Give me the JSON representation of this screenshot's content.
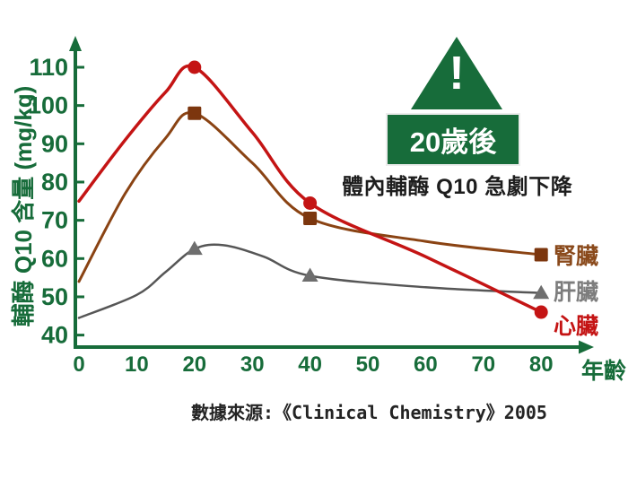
{
  "colors": {
    "axis_green": "#176c3a",
    "warning_green": "#176c3a",
    "heart_red": "#c41414",
    "kidney_brown": "#8a4313",
    "liver_gray": "#565656",
    "text_black": "#1d1d1d",
    "background": "#ffffff"
  },
  "chart_data": {
    "type": "line",
    "title": "",
    "xlabel": "年齡",
    "ylabel": "輔酶 Q10 含量 (mg/kg)",
    "x_ticks": [
      0,
      10,
      20,
      30,
      40,
      50,
      60,
      70,
      80
    ],
    "y_ticks": [
      40,
      50,
      60,
      70,
      80,
      90,
      100,
      110
    ],
    "xlim": [
      0,
      85
    ],
    "ylim": [
      37,
      116
    ],
    "grid": false,
    "legend_position": "right of line ends",
    "series": [
      {
        "name": "腎臟",
        "organ": "kidney",
        "color": "#8a4313",
        "marker_color": "#7c360e",
        "label_color": "#8a4a1c",
        "marker": "square",
        "width": 3,
        "z": 2,
        "points": [
          [
            0,
            54
          ],
          [
            8,
            77
          ],
          [
            15,
            91.5
          ],
          [
            20,
            98
          ],
          [
            30,
            85
          ],
          [
            40,
            70.5
          ],
          [
            60,
            64.5
          ],
          [
            80,
            61
          ]
        ],
        "marker_points": [
          [
            20,
            98
          ],
          [
            40,
            70.5
          ],
          [
            80,
            61
          ]
        ]
      },
      {
        "name": "肝臟",
        "organ": "liver",
        "color": "#565656",
        "marker_color": "#6e6e6e",
        "label_color": "#7d7d7d",
        "marker": "triangle",
        "width": 2.5,
        "z": 1,
        "points": [
          [
            0,
            44.5
          ],
          [
            10,
            50.5
          ],
          [
            15,
            56.5
          ],
          [
            20,
            62.5
          ],
          [
            25,
            63.5
          ],
          [
            32,
            60.5
          ],
          [
            40,
            55.5
          ],
          [
            60,
            52.5
          ],
          [
            80,
            51
          ]
        ],
        "marker_points": [
          [
            20,
            62.5
          ],
          [
            40,
            55.5
          ],
          [
            80,
            51
          ]
        ]
      },
      {
        "name": "心臟",
        "organ": "heart",
        "color": "#c41414",
        "marker_color": "#c41414",
        "label_color": "#c41414",
        "marker": "circle",
        "width": 3.5,
        "z": 3,
        "points": [
          [
            0,
            75
          ],
          [
            8,
            91
          ],
          [
            15,
            103.5
          ],
          [
            20,
            110
          ],
          [
            30,
            93
          ],
          [
            40,
            74.5
          ],
          [
            60,
            60.5
          ],
          [
            80,
            46
          ]
        ],
        "marker_points": [
          [
            20,
            110
          ],
          [
            40,
            74.5
          ],
          [
            80,
            46
          ]
        ]
      }
    ]
  },
  "annotation": {
    "icon": "exclamation-warning",
    "icon_text": "!",
    "badge": "20歲後",
    "subtitle": "體內輔酶 Q10 急劇下降"
  },
  "source": {
    "text": "數據來源:《Clinical Chemistry》2005"
  }
}
